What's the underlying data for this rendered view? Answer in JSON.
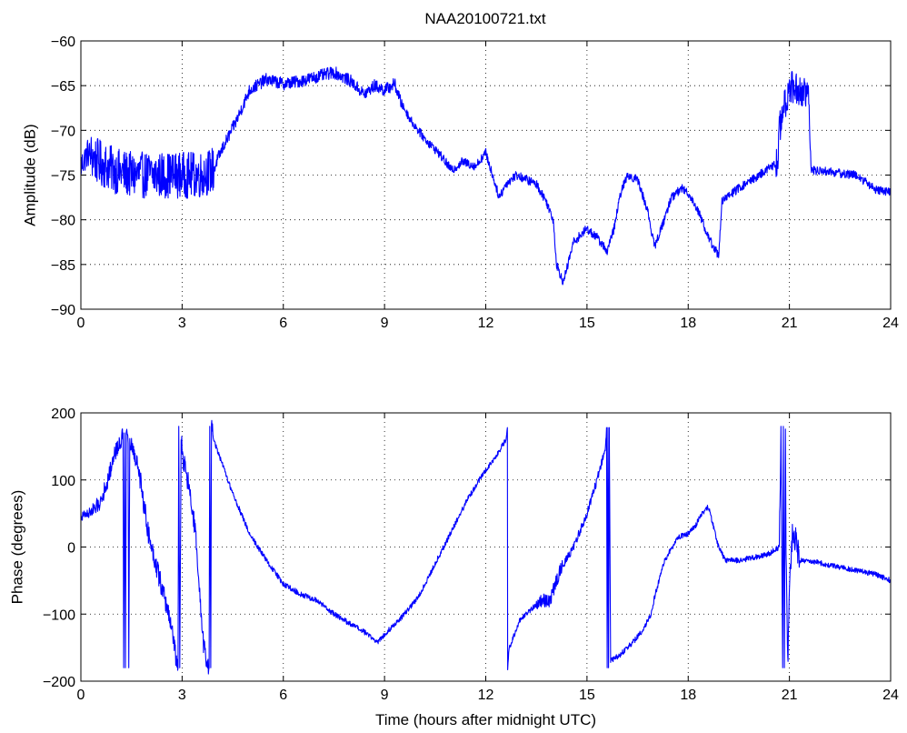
{
  "title": "NAA20100721.txt",
  "colors": {
    "trace": "#0000ff",
    "axes": "#000000",
    "background": "#ffffff"
  },
  "chart_data": [
    {
      "type": "line",
      "title": "NAA20100721.txt",
      "xlabel": "",
      "ylabel": "Amplitude (dB)",
      "xlim": [
        0,
        24
      ],
      "ylim": [
        -90,
        -60
      ],
      "xticks": [
        0,
        3,
        6,
        9,
        12,
        15,
        18,
        21,
        24
      ],
      "xtick_labels": [
        "0",
        "3",
        "6",
        "9",
        "12",
        "15",
        "18",
        "21",
        "24"
      ],
      "yticks": [
        -90,
        -85,
        -80,
        -75,
        -70,
        -65,
        -60
      ],
      "ytick_labels": [
        "−90",
        "−85",
        "−80",
        "−75",
        "−70",
        "−65",
        "−60"
      ],
      "grid": true,
      "noise_segments": [
        {
          "from": 0.0,
          "to": 0.3,
          "amplitude": 1.6
        },
        {
          "from": 0.3,
          "to": 4.0,
          "amplitude": 2.6
        },
        {
          "from": 4.0,
          "to": 9.5,
          "amplitude": 0.7
        },
        {
          "from": 9.5,
          "to": 20.6,
          "amplitude": 0.5
        },
        {
          "from": 20.6,
          "to": 21.6,
          "amplitude": 2.0
        },
        {
          "from": 21.6,
          "to": 24.0,
          "amplitude": 0.5
        }
      ],
      "series": [
        {
          "x": [
            0,
            0.2,
            0.5,
            1.0,
            1.5,
            2.0,
            2.5,
            3.0,
            3.5,
            3.9,
            4.2,
            4.6,
            5.0,
            5.5,
            6.0,
            6.5,
            7.0,
            7.5,
            8.0,
            8.4,
            8.7,
            9.0,
            9.3,
            9.5,
            9.8,
            10.2,
            10.6,
            11.0,
            11.3,
            11.7,
            12.0,
            12.2,
            12.4,
            12.6,
            12.9,
            13.2,
            13.5,
            13.8,
            14.0,
            14.1,
            14.3,
            14.6,
            15.0,
            15.3,
            15.6,
            15.8,
            16.0,
            16.2,
            16.5,
            16.8,
            17.0,
            17.2,
            17.5,
            17.8,
            18.0,
            18.3,
            18.6,
            18.9,
            19.0,
            19.3,
            19.7,
            20.1,
            20.5,
            20.65,
            20.7,
            21.0,
            21.3,
            21.55,
            21.65,
            22.0,
            22.5,
            23.0,
            23.5,
            24.0
          ],
          "y": [
            -74,
            -72.5,
            -73.5,
            -74.5,
            -75,
            -75,
            -75,
            -75,
            -75,
            -74.5,
            -72,
            -69,
            -65.5,
            -64.3,
            -64.8,
            -64.5,
            -64,
            -63.5,
            -64.5,
            -66,
            -65,
            -65.5,
            -64.8,
            -67,
            -69,
            -71,
            -72.5,
            -74.5,
            -73.5,
            -74,
            -72.5,
            -75,
            -77.5,
            -76,
            -75,
            -75.5,
            -76,
            -78,
            -80,
            -85,
            -87,
            -82.5,
            -81,
            -82,
            -83.5,
            -81,
            -77,
            -75,
            -75.5,
            -79,
            -83,
            -81,
            -77.5,
            -76.5,
            -77,
            -79,
            -82,
            -84,
            -78,
            -77,
            -76,
            -75,
            -74,
            -73.5,
            -70,
            -65,
            -65.5,
            -66,
            -74.5,
            -74.5,
            -74.8,
            -75,
            -76.5,
            -77
          ]
        }
      ]
    },
    {
      "type": "line",
      "title": "",
      "xlabel": "Time (hours after midnight UTC)",
      "ylabel": "Phase (degrees)",
      "xlim": [
        0,
        24
      ],
      "ylim": [
        -200,
        200
      ],
      "xticks": [
        0,
        3,
        6,
        9,
        12,
        15,
        18,
        21,
        24
      ],
      "xtick_labels": [
        "0",
        "3",
        "6",
        "9",
        "12",
        "15",
        "18",
        "21",
        "24"
      ],
      "yticks": [
        -200,
        -100,
        0,
        100,
        200
      ],
      "ytick_labels": [
        "−200",
        "−100",
        "0",
        "100",
        "200"
      ],
      "grid": true,
      "noise_segments": [
        {
          "from": 0.0,
          "to": 0.3,
          "amplitude": 8
        },
        {
          "from": 0.3,
          "to": 1.7,
          "amplitude": 12
        },
        {
          "from": 1.7,
          "to": 3.9,
          "amplitude": 16
        },
        {
          "from": 3.9,
          "to": 13.5,
          "amplitude": 4
        },
        {
          "from": 13.5,
          "to": 14.3,
          "amplitude": 10
        },
        {
          "from": 14.3,
          "to": 15.6,
          "amplitude": 6
        },
        {
          "from": 15.6,
          "to": 20.7,
          "amplitude": 4
        },
        {
          "from": 20.7,
          "to": 21.3,
          "amplitude": 20
        },
        {
          "from": 21.3,
          "to": 24.0,
          "amplitude": 4
        }
      ],
      "series": [
        {
          "x": [
            0,
            0.2,
            0.4,
            0.6,
            0.8,
            1.0,
            1.2,
            1.25,
            1.27,
            1.3,
            1.32,
            1.35,
            1.4,
            1.42,
            1.45,
            1.5,
            1.7,
            2.0,
            2.3,
            2.5,
            2.7,
            2.8,
            2.88,
            2.9,
            2.93,
            2.97,
            3.0,
            3.2,
            3.4,
            3.5,
            3.6,
            3.7,
            3.8,
            3.82,
            3.85,
            3.87,
            3.9,
            4.0,
            4.5,
            5.0,
            5.5,
            6.0,
            6.5,
            7.0,
            7.5,
            8.0,
            8.5,
            8.8,
            9.0,
            9.5,
            10.0,
            10.5,
            11.0,
            11.5,
            12.0,
            12.3,
            12.6,
            12.64,
            12.65,
            12.66,
            12.68,
            12.7,
            13.0,
            13.3,
            13.6,
            13.9,
            14.2,
            14.6,
            15.0,
            15.3,
            15.55,
            15.58,
            15.6,
            15.62,
            15.64,
            15.66,
            15.7,
            16.0,
            16.4,
            16.7,
            16.9,
            17.0,
            17.3,
            17.7,
            18.0,
            18.2,
            18.4,
            18.6,
            18.9,
            19.1,
            19.5,
            20.0,
            20.4,
            20.7,
            20.75,
            20.8,
            20.82,
            20.85,
            20.88,
            20.9,
            20.95,
            21.0,
            21.1,
            21.3,
            21.6,
            22.0,
            22.5,
            23.0,
            23.5,
            24.0
          ],
          "y": [
            45,
            50,
            55,
            70,
            100,
            140,
            160,
            170,
            -180,
            170,
            -180,
            170,
            155,
            -180,
            155,
            150,
            120,
            20,
            -40,
            -80,
            -120,
            -160,
            -180,
            180,
            -180,
            170,
            140,
            90,
            20,
            -60,
            -130,
            -170,
            -180,
            180,
            -180,
            180,
            170,
            150,
            80,
            20,
            -20,
            -55,
            -70,
            -80,
            -100,
            -115,
            -130,
            -142,
            -130,
            -105,
            -75,
            -25,
            25,
            75,
            115,
            135,
            160,
            178,
            -180,
            -170,
            -160,
            -150,
            -110,
            -95,
            -80,
            -80,
            -35,
            0,
            50,
            100,
            150,
            178,
            -180,
            178,
            -180,
            178,
            -170,
            -160,
            -140,
            -120,
            -100,
            -75,
            -20,
            15,
            20,
            30,
            50,
            60,
            0,
            -20,
            -20,
            -15,
            -10,
            0,
            180,
            -180,
            180,
            -180,
            180,
            0,
            -180,
            -60,
            30,
            -20,
            -20,
            -25,
            -30,
            -35,
            -40,
            -50
          ]
        }
      ]
    }
  ]
}
